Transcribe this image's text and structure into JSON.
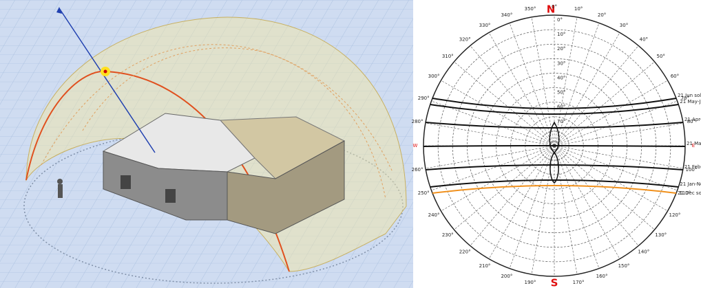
{
  "compass": {
    "north": "N"
  },
  "azimuth_labels": [
    "0°",
    "10°",
    "20°",
    "30°",
    "40°",
    "50°",
    "60°",
    "70°",
    "80°",
    "E",
    "100°",
    "110°",
    "120°",
    "130°",
    "140°",
    "150°",
    "160°",
    "170°",
    "S",
    "190°",
    "200°",
    "210°",
    "220°",
    "230°",
    "240°",
    "250°",
    "260°",
    "W",
    "280°",
    "290°",
    "300°",
    "310°",
    "320°",
    "330°",
    "340°",
    "350°"
  ],
  "altitude_labels": [
    "0°",
    "10°",
    "20°",
    "30°",
    "40°",
    "50°",
    "60°",
    "70°"
  ],
  "sun_paths": [
    "21 Jun solst",
    "21 May-Jul",
    "21 Apr-A",
    "21 Mar-S",
    "21 Feb-Oct",
    "21 Jan-Nov",
    "21 Dec solst"
  ]
}
